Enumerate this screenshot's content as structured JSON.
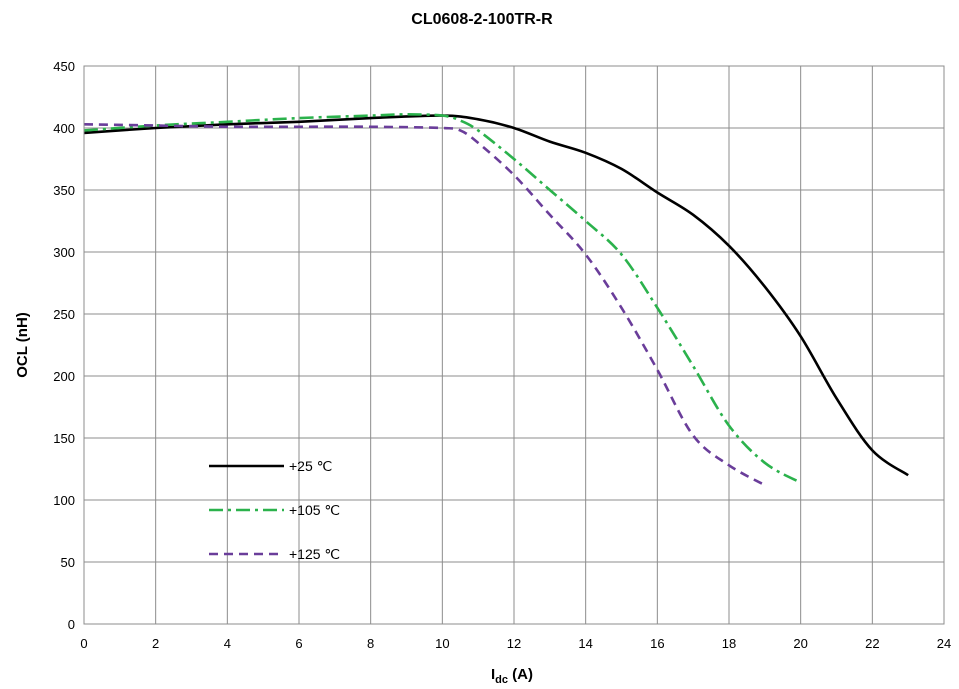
{
  "chart_data": {
    "type": "line",
    "title": "CL0608-2-100TR-R",
    "xlabel_main": "I",
    "xlabel_sub": "dc",
    "xlabel_unit": " (A)",
    "ylabel": "OCL (nH)",
    "xlim": [
      0,
      24
    ],
    "ylim": [
      0,
      450
    ],
    "x_ticks": [
      "0",
      "2",
      "4",
      "6",
      "8",
      "10",
      "12",
      "14",
      "16",
      "18",
      "20",
      "22",
      "24"
    ],
    "y_ticks": [
      "0",
      "50",
      "100",
      "150",
      "200",
      "250",
      "300",
      "350",
      "400",
      "450"
    ],
    "grid": true,
    "legend_position": "lower-left",
    "series": [
      {
        "name": "+25 ℃",
        "color": "#000000",
        "dash": "solid",
        "x": [
          0,
          2,
          4,
          6,
          8,
          10,
          11,
          12,
          13,
          14,
          15,
          16,
          17,
          18,
          19,
          20,
          21,
          22,
          23
        ],
        "y": [
          396,
          400,
          403,
          405,
          408,
          410,
          407,
          400,
          389,
          380,
          367,
          348,
          330,
          305,
          272,
          232,
          182,
          140,
          120
        ]
      },
      {
        "name": "+105 ℃",
        "color": "#2bb24c",
        "dash": "dashdot",
        "x": [
          0,
          2,
          4,
          6,
          8,
          9,
          10,
          10.5,
          11,
          12,
          13,
          14,
          15,
          16,
          17,
          18,
          19,
          20
        ],
        "y": [
          398,
          402,
          405,
          408,
          410,
          411,
          410,
          406,
          398,
          375,
          350,
          325,
          298,
          255,
          208,
          160,
          130,
          114
        ]
      },
      {
        "name": "+125 ℃",
        "color": "#6a3d9a",
        "dash": "dash",
        "x": [
          0,
          2,
          4,
          6,
          8,
          10,
          10.5,
          11,
          12,
          13,
          14,
          15,
          16,
          17,
          18,
          19
        ],
        "y": [
          403,
          402,
          401,
          401,
          401,
          400,
          398,
          388,
          362,
          330,
          298,
          255,
          205,
          152,
          128,
          112
        ]
      }
    ]
  }
}
